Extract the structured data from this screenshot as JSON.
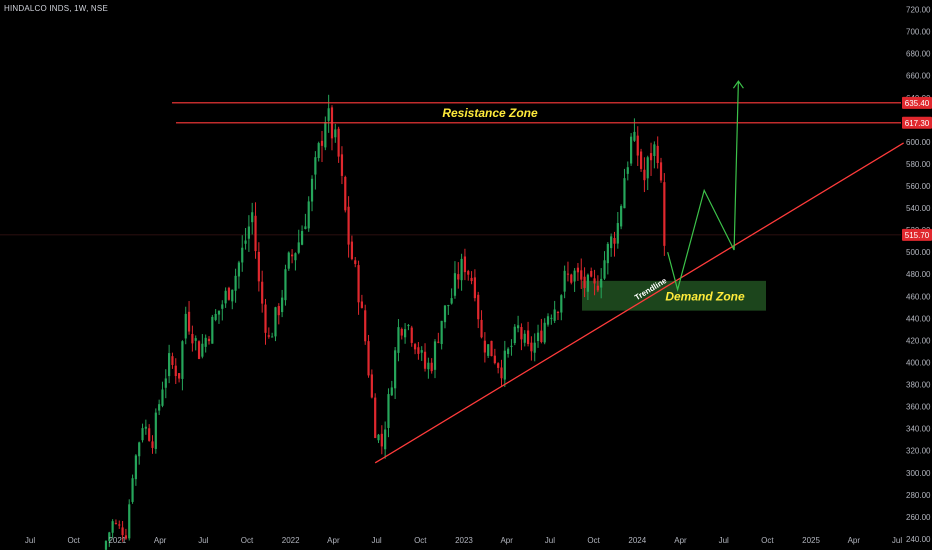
{
  "header": {
    "symbol": "HINDALCO INDS",
    "interval": "1W",
    "exchange": "NSE",
    "title": "HINDALCO INDS, 1W, NSE"
  },
  "colors": {
    "background": "#000000",
    "up": "#26a65b",
    "down": "#e0282e",
    "resistance_line": "#ff3b3b",
    "trendline": "#ff3b3b",
    "projection": "#3cc24a",
    "demand_fill": "#1f4d1f",
    "label_red": "#e0282e",
    "annotation_yellow": "#ffeb3b",
    "axis_text": "#b2b5be"
  },
  "chart_data": {
    "type": "candlestick",
    "title": "HINDALCO INDS, 1W, NSE",
    "ylim": [
      230,
      725
    ],
    "y_ticks": [
      240,
      260,
      280,
      300,
      320,
      340,
      360,
      380,
      400,
      420,
      440,
      460,
      480,
      500,
      520,
      540,
      560,
      580,
      600,
      620,
      640,
      660,
      680,
      700,
      720
    ],
    "x_ticks": [
      {
        "label": "Jul",
        "date": "2020-07-01"
      },
      {
        "label": "Oct",
        "date": "2020-10-01"
      },
      {
        "label": "2021",
        "date": "2021-01-01"
      },
      {
        "label": "Apr",
        "date": "2021-04-01"
      },
      {
        "label": "Jul",
        "date": "2021-07-01"
      },
      {
        "label": "Oct",
        "date": "2021-10-01"
      },
      {
        "label": "2022",
        "date": "2022-01-01"
      },
      {
        "label": "Apr",
        "date": "2022-04-01"
      },
      {
        "label": "Jul",
        "date": "2022-07-01"
      },
      {
        "label": "Oct",
        "date": "2022-10-01"
      },
      {
        "label": "2023",
        "date": "2023-01-01"
      },
      {
        "label": "Apr",
        "date": "2023-04-01"
      },
      {
        "label": "Jul",
        "date": "2023-07-01"
      },
      {
        "label": "Oct",
        "date": "2023-10-01"
      },
      {
        "label": "2024",
        "date": "2024-01-01"
      },
      {
        "label": "Apr",
        "date": "2024-04-01"
      },
      {
        "label": "Jul",
        "date": "2024-07-01"
      },
      {
        "label": "Oct",
        "date": "2024-10-01"
      },
      {
        "label": "2025",
        "date": "2025-01-01"
      },
      {
        "label": "Apr",
        "date": "2025-04-01"
      },
      {
        "label": "Jul",
        "date": "2025-07-01"
      }
    ],
    "price_path": [
      {
        "date": "2020-12-01",
        "close": 230
      },
      {
        "date": "2020-12-22",
        "close": 255
      },
      {
        "date": "2021-01-19",
        "close": 245
      },
      {
        "date": "2021-02-02",
        "close": 300
      },
      {
        "date": "2021-02-23",
        "close": 345
      },
      {
        "date": "2021-03-16",
        "close": 330
      },
      {
        "date": "2021-04-06",
        "close": 380
      },
      {
        "date": "2021-04-20",
        "close": 400
      },
      {
        "date": "2021-05-11",
        "close": 390
      },
      {
        "date": "2021-05-25",
        "close": 445
      },
      {
        "date": "2021-06-22",
        "close": 410
      },
      {
        "date": "2021-07-20",
        "close": 435
      },
      {
        "date": "2021-08-17",
        "close": 460
      },
      {
        "date": "2021-09-07",
        "close": 480
      },
      {
        "date": "2021-09-21",
        "close": 500
      },
      {
        "date": "2021-10-12",
        "close": 535
      },
      {
        "date": "2021-10-26",
        "close": 470
      },
      {
        "date": "2021-11-16",
        "close": 420
      },
      {
        "date": "2021-12-07",
        "close": 450
      },
      {
        "date": "2021-12-28",
        "close": 490
      },
      {
        "date": "2022-01-18",
        "close": 510
      },
      {
        "date": "2022-02-08",
        "close": 545
      },
      {
        "date": "2022-03-01",
        "close": 590
      },
      {
        "date": "2022-03-15",
        "close": 625
      },
      {
        "date": "2022-03-29",
        "close": 610
      },
      {
        "date": "2022-04-12",
        "close": 585
      },
      {
        "date": "2022-05-03",
        "close": 510
      },
      {
        "date": "2022-05-24",
        "close": 465
      },
      {
        "date": "2022-06-07",
        "close": 420
      },
      {
        "date": "2022-06-28",
        "close": 340
      },
      {
        "date": "2022-07-12",
        "close": 325
      },
      {
        "date": "2022-07-26",
        "close": 365
      },
      {
        "date": "2022-08-16",
        "close": 430
      },
      {
        "date": "2022-08-30",
        "close": 440
      },
      {
        "date": "2022-09-20",
        "close": 420
      },
      {
        "date": "2022-10-11",
        "close": 395
      },
      {
        "date": "2022-10-25",
        "close": 400
      },
      {
        "date": "2022-11-15",
        "close": 440
      },
      {
        "date": "2022-12-06",
        "close": 460
      },
      {
        "date": "2022-12-20",
        "close": 480
      },
      {
        "date": "2023-01-03",
        "close": 490
      },
      {
        "date": "2023-01-24",
        "close": 470
      },
      {
        "date": "2023-02-07",
        "close": 420
      },
      {
        "date": "2023-02-28",
        "close": 410
      },
      {
        "date": "2023-03-21",
        "close": 395
      },
      {
        "date": "2023-04-11",
        "close": 415
      },
      {
        "date": "2023-04-25",
        "close": 430
      },
      {
        "date": "2023-05-16",
        "close": 410
      },
      {
        "date": "2023-06-06",
        "close": 420
      },
      {
        "date": "2023-06-27",
        "close": 445
      },
      {
        "date": "2023-07-18",
        "close": 455
      },
      {
        "date": "2023-08-01",
        "close": 475
      },
      {
        "date": "2023-08-22",
        "close": 480
      },
      {
        "date": "2023-09-12",
        "close": 470
      },
      {
        "date": "2023-10-03",
        "close": 465
      },
      {
        "date": "2023-10-17",
        "close": 485
      },
      {
        "date": "2023-11-07",
        "close": 510
      },
      {
        "date": "2023-11-21",
        "close": 525
      },
      {
        "date": "2023-12-05",
        "close": 570
      },
      {
        "date": "2023-12-19",
        "close": 600
      },
      {
        "date": "2024-01-02",
        "close": 590
      },
      {
        "date": "2024-01-16",
        "close": 565
      },
      {
        "date": "2024-01-30",
        "close": 590
      },
      {
        "date": "2024-02-13",
        "close": 595
      },
      {
        "date": "2024-02-27",
        "close": 515
      }
    ],
    "annotations": {
      "resistance_label": "Resistance Zone",
      "demand_label": "Demand Zone",
      "trendline_label": "Trendline",
      "resistance_upper_label": "635.40",
      "resistance_lower_label": "617.30",
      "last_price_label": "515.70"
    },
    "levels": {
      "resistance_upper": 635.4,
      "resistance_lower": 617.3,
      "last_price": 515.7,
      "demand_low": 447,
      "demand_high": 474
    },
    "trendline": [
      {
        "date": "2022-06-28",
        "price": 309
      },
      {
        "date": "2025-07-15",
        "price": 599
      }
    ],
    "projection_path": [
      {
        "date": "2024-03-05",
        "price": 500
      },
      {
        "date": "2024-03-26",
        "price": 466
      },
      {
        "date": "2024-05-21",
        "price": 556
      },
      {
        "date": "2024-07-23",
        "price": 502
      },
      {
        "date": "2024-08-01",
        "price": 655
      }
    ]
  }
}
